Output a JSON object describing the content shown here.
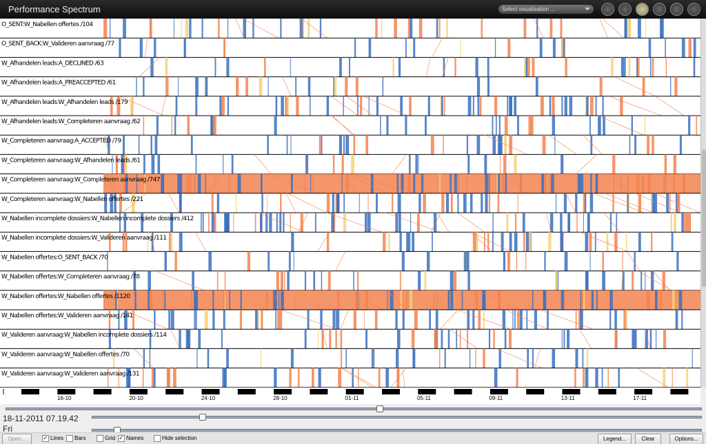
{
  "header": {
    "title": "Performance Spectrum",
    "select_placeholder": "Select visualisation ..."
  },
  "rows": [
    "O_SENT:W_Nabellen offertes /104",
    "O_SENT_BACK:W_Valideren aanvraag /77",
    "W_Afhandelen leads:A_DECLINED /63",
    "W_Afhandelen leads:A_PREACCEPTED /61",
    "W_Afhandelen leads:W_Afhandelen leads /179",
    "W_Afhandelen leads:W_Completeren aanvraag /62",
    "W_Completeren aanvraag:A_ACCEPTED /79",
    "W_Completeren aanvraag:W_Afhandelen leads /61",
    "W_Completeren aanvraag:W_Completeren aanvraag /747",
    "W_Completeren aanvraag:W_Nabellen offertes /221",
    "W_Nabellen incomplete dossiers:W_Nabellen incomplete dossiers /412",
    "W_Nabellen incomplete dossiers:W_Valideren aanvraag /111",
    "W_Nabellen offertes:O_SENT_BACK /70",
    "W_Nabellen offertes:W_Completeren aanvraag /78",
    "W_Nabellen offertes:W_Nabellen offertes /1120",
    "W_Nabellen offertes:W_Valideren aanvraag /141",
    "W_Valideren aanvraag:W_Nabellen incomplete dossiers /114",
    "W_Valideren aanvraag:W_Nabellen offertes /70",
    "W_Valideren aanvraag:W_Valideren aanvraag /131"
  ],
  "timeline": {
    "dates": [
      "16-10",
      "20-10",
      "24-10",
      "28-10",
      "01-11",
      "05-11",
      "09-11",
      "13-11",
      "17-11"
    ]
  },
  "status": {
    "datetime": "18-11-2011 07.19.42",
    "weekday": "Fri"
  },
  "controls": {
    "open": "Open...",
    "checkboxes": [
      {
        "label": "Lines",
        "checked": true
      },
      {
        "label": "Bars",
        "checked": false
      },
      {
        "label": "Grid",
        "checked": false
      },
      {
        "label": "Names",
        "checked": true
      },
      {
        "label": "Hide selection",
        "checked": false
      }
    ],
    "legend": "Legend...",
    "clear": "Clear",
    "options": "Options..."
  }
}
